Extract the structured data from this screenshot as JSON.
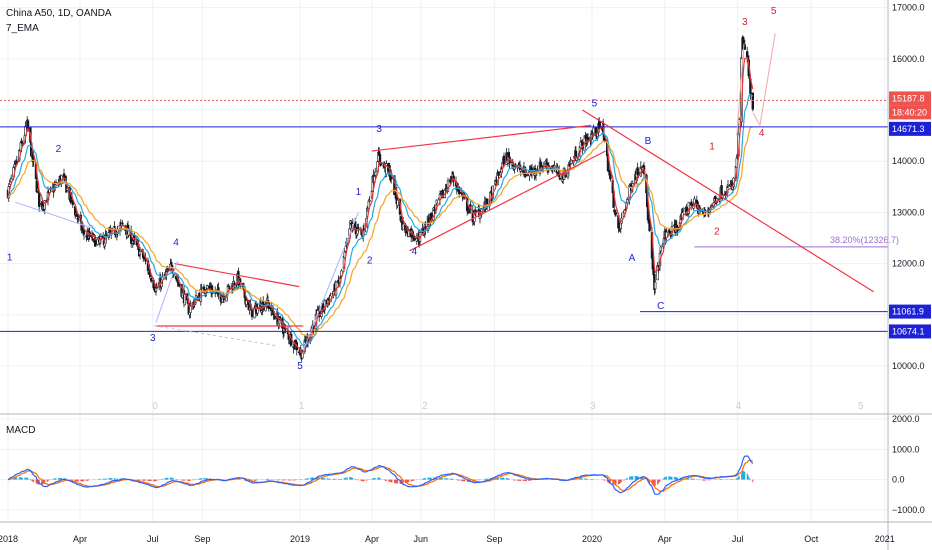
{
  "header": {
    "symbol": "China A50, 1D, OANDA",
    "indicator": "7_EMA"
  },
  "macd_panel": {
    "label": "MACD"
  },
  "colors": {
    "up": "#131722",
    "down": "#131722",
    "ema_fast": "#e53935",
    "ema_mid": "#26a9e0",
    "ema_slow": "#f5a623",
    "hline": "#1e22d6",
    "trend": "#f23645",
    "wave_blue": "#1e22d6",
    "wave_red": "#d81b2a",
    "fib": "#9c6dd6",
    "macd_line": "#2962ff",
    "signal_line": "#ff6d00",
    "hist_pos": "#26a9e0",
    "hist_neg": "#ef5350"
  },
  "chart_data": [
    {
      "type": "candlestick",
      "title": "China A50, 1D, OANDA",
      "series": [
        {
          "name": "7_EMA"
        }
      ],
      "x_tick_labels": [
        "2018",
        "Apr",
        "Jul",
        "Sep",
        "2019",
        "Apr",
        "Jun",
        "Sep",
        "2020",
        "Apr",
        "Jul",
        "Oct",
        "2021"
      ],
      "x_tick_dates": [
        "2018-01-01",
        "2018-04-01",
        "2018-07-01",
        "2018-09-01",
        "2019-01-01",
        "2019-04-01",
        "2019-06-01",
        "2019-09-01",
        "2020-01-01",
        "2020-04-01",
        "2020-07-01",
        "2020-10-01",
        "2021-01-01"
      ],
      "y_ticks": [
        10000.0,
        11000.0,
        12000.0,
        13000.0,
        14000.0,
        15000.0,
        16000.0,
        17000.0
      ],
      "ylim": [
        9100,
        17150
      ],
      "xlim": [
        "2017-12-22",
        "2021-01-05"
      ],
      "price_path": [
        {
          "x": "2018-01-01",
          "y": 13400
        },
        {
          "x": "2018-01-25",
          "y": 14700
        },
        {
          "x": "2018-02-10",
          "y": 13100
        },
        {
          "x": "2018-03-10",
          "y": 13700
        },
        {
          "x": "2018-04-05",
          "y": 12600
        },
        {
          "x": "2018-04-25",
          "y": 12400
        },
        {
          "x": "2018-05-25",
          "y": 12750
        },
        {
          "x": "2018-06-20",
          "y": 12100
        },
        {
          "x": "2018-07-05",
          "y": 11500
        },
        {
          "x": "2018-07-25",
          "y": 11950
        },
        {
          "x": "2018-08-15",
          "y": 11100
        },
        {
          "x": "2018-09-05",
          "y": 11550
        },
        {
          "x": "2018-09-25",
          "y": 11350
        },
        {
          "x": "2018-10-15",
          "y": 11700
        },
        {
          "x": "2018-11-01",
          "y": 11050
        },
        {
          "x": "2018-11-20",
          "y": 11250
        },
        {
          "x": "2018-12-10",
          "y": 10750
        },
        {
          "x": "2019-01-03",
          "y": 10250
        },
        {
          "x": "2019-01-20",
          "y": 10900
        },
        {
          "x": "2019-02-20",
          "y": 11650
        },
        {
          "x": "2019-03-05",
          "y": 12750
        },
        {
          "x": "2019-03-20",
          "y": 12550
        },
        {
          "x": "2019-04-08",
          "y": 14100
        },
        {
          "x": "2019-04-25",
          "y": 13700
        },
        {
          "x": "2019-05-10",
          "y": 12700
        },
        {
          "x": "2019-05-30",
          "y": 12500
        },
        {
          "x": "2019-06-20",
          "y": 13100
        },
        {
          "x": "2019-07-10",
          "y": 13700
        },
        {
          "x": "2019-08-05",
          "y": 12900
        },
        {
          "x": "2019-08-25",
          "y": 13200
        },
        {
          "x": "2019-09-15",
          "y": 14100
        },
        {
          "x": "2019-10-10",
          "y": 13750
        },
        {
          "x": "2019-11-05",
          "y": 13950
        },
        {
          "x": "2019-11-25",
          "y": 13700
        },
        {
          "x": "2019-12-20",
          "y": 14350
        },
        {
          "x": "2020-01-14",
          "y": 14700
        },
        {
          "x": "2020-01-23",
          "y": 13700
        },
        {
          "x": "2020-02-03",
          "y": 12600
        },
        {
          "x": "2020-02-20",
          "y": 13600
        },
        {
          "x": "2020-03-05",
          "y": 14000
        },
        {
          "x": "2020-03-19",
          "y": 11500
        },
        {
          "x": "2020-03-30",
          "y": 12500
        },
        {
          "x": "2020-04-15",
          "y": 12700
        },
        {
          "x": "2020-05-05",
          "y": 13200
        },
        {
          "x": "2020-05-20",
          "y": 12950
        },
        {
          "x": "2020-06-10",
          "y": 13400
        },
        {
          "x": "2020-06-25",
          "y": 13500
        },
        {
          "x": "2020-07-01",
          "y": 14100
        },
        {
          "x": "2020-07-07",
          "y": 16300
        },
        {
          "x": "2020-07-13",
          "y": 16000
        },
        {
          "x": "2020-07-20",
          "y": 14950
        }
      ],
      "emas": [
        {
          "name": "red",
          "smooth": 0.35
        },
        {
          "name": "blue",
          "smooth": 0.12
        },
        {
          "name": "orange",
          "smooth": 0.06
        }
      ]
    },
    {
      "type": "line",
      "title": "MACD",
      "series": [
        {
          "name": "macd"
        },
        {
          "name": "signal"
        }
      ],
      "y_ticks": [
        2000.0,
        1000.0,
        0.0,
        -1000.0
      ],
      "ylim": [
        -1400,
        2100
      ]
    }
  ],
  "price_labels": {
    "last": "15187.8",
    "countdown": "18:40:20",
    "line1": "14671.3",
    "line2": "11061.9",
    "line3": "10674.1"
  },
  "fib_label": "38.20%(12326.7)",
  "wave_labels": [
    {
      "t": "1",
      "d": "2018-01-03",
      "p": 12060,
      "c": "blue"
    },
    {
      "t": "2",
      "d": "2018-03-05",
      "p": 14180,
      "c": "blue"
    },
    {
      "t": "3",
      "d": "2018-07-01",
      "p": 10490,
      "c": "blue"
    },
    {
      "t": "4",
      "d": "2018-07-30",
      "p": 12350,
      "c": "blue"
    },
    {
      "t": "5",
      "d": "2019-01-01",
      "p": 9940,
      "c": "blue"
    },
    {
      "t": "1",
      "d": "2019-03-15",
      "p": 13340,
      "c": "blue"
    },
    {
      "t": "2",
      "d": "2019-03-29",
      "p": 12000,
      "c": "blue"
    },
    {
      "t": "3",
      "d": "2019-04-10",
      "p": 14570,
      "c": "blue"
    },
    {
      "t": "4",
      "d": "2019-05-24",
      "p": 12180,
      "c": "blue"
    },
    {
      "t": "5",
      "d": "2020-01-04",
      "p": 15070,
      "c": "blue"
    },
    {
      "t": "A",
      "d": "2020-02-20",
      "p": 12050,
      "c": "blue"
    },
    {
      "t": "B",
      "d": "2020-03-11",
      "p": 14340,
      "c": "blue"
    },
    {
      "t": "C",
      "d": "2020-03-27",
      "p": 11110,
      "c": "blue"
    },
    {
      "t": "1",
      "d": "2020-05-30",
      "p": 14230,
      "c": "red"
    },
    {
      "t": "2",
      "d": "2020-06-05",
      "p": 12570,
      "c": "red"
    },
    {
      "t": "3",
      "d": "2020-07-10",
      "p": 16660,
      "c": "red"
    },
    {
      "t": "4",
      "d": "2020-07-31",
      "p": 14490,
      "c": "red"
    },
    {
      "t": "5",
      "d": "2020-08-15",
      "p": 16880,
      "c": "red"
    }
  ],
  "cycle_labels": [
    {
      "t": "0",
      "d": "2018-07-04"
    },
    {
      "t": "1",
      "d": "2019-01-03"
    },
    {
      "t": "2",
      "d": "2019-06-06"
    },
    {
      "t": "3",
      "d": "2020-01-02"
    },
    {
      "t": "4",
      "d": "2020-07-02"
    },
    {
      "t": "5",
      "d": "2020-12-02"
    }
  ]
}
